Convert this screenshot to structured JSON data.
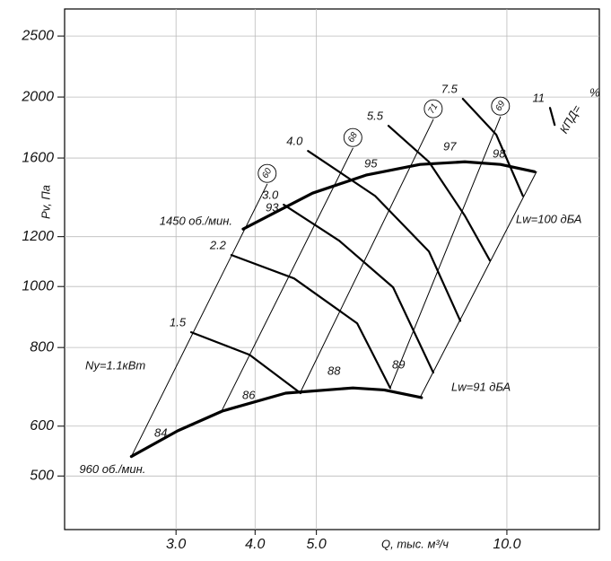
{
  "chart_data": {
    "type": "fan-performance",
    "y_label": "Pv, Па",
    "x_label": "Q, тыс. м³/ч",
    "log_x": true,
    "log_y": true,
    "grid": true,
    "color": "#000000",
    "xlim": [
      2,
      14
    ],
    "ylim": [
      411,
      2760
    ],
    "xticks": [
      {
        "value": 3,
        "label": "3.0"
      },
      {
        "value": 4,
        "label": "4.0"
      },
      {
        "value": 5,
        "label": "5.0"
      },
      {
        "value": 10,
        "label": "10.0"
      }
    ],
    "yticks": [
      500,
      600,
      800,
      1000,
      1200,
      1600,
      2000,
      2500
    ],
    "speed_curves": [
      {
        "name": "1450 об./мин.",
        "x": [
          3.83,
          4.93,
          5.99,
          7.29,
          8.58,
          9.77,
          11.06
        ],
        "y": [
          1234,
          1407,
          1503,
          1563,
          1578,
          1563,
          1522
        ]
      },
      {
        "name": "960 об./мин.",
        "x": [
          2.55,
          3.02,
          3.55,
          4.47,
          5.71,
          6.4,
          7.33
        ],
        "y": [
          537,
          590,
          634,
          677,
          690,
          685,
          666
        ]
      }
    ],
    "power_curves": [
      {
        "name": "1.5",
        "x": [
          3.17,
          3.92,
          4.72
        ],
        "y": [
          846,
          779,
          677
        ]
      },
      {
        "name": "2.2",
        "x": [
          3.67,
          4.61,
          5.8,
          6.54
        ],
        "y": [
          1122,
          1030,
          874,
          690
        ]
      },
      {
        "name": "3.0",
        "x": [
          4.44,
          5.43,
          6.61,
          7.65
        ],
        "y": [
          1349,
          1183,
          997,
          730
        ]
      },
      {
        "name": "4.0",
        "x": [
          4.85,
          6.19,
          7.53,
          8.44
        ],
        "y": [
          1642,
          1393,
          1137,
          882
        ]
      },
      {
        "name": "5.5",
        "x": [
          6.5,
          7.53,
          8.58,
          9.4
        ],
        "y": [
          1800,
          1578,
          1296,
          1100
        ]
      },
      {
        "name": "7.5",
        "x": [
          8.52,
          9.62,
          10.6
        ],
        "y": [
          1987,
          1743,
          1393
        ]
      },
      {
        "name": "11",
        "x": [
          11.7,
          11.9
        ],
        "y": [
          1922,
          1806
        ]
      }
    ],
    "efficiency_lines": [
      {
        "name": "60",
        "x": [
          2.55,
          4.18
        ],
        "y": [
          537,
          1454
        ]
      },
      {
        "name": "68",
        "x": [
          3.53,
          5.71
        ],
        "y": [
          630,
          1658
        ]
      },
      {
        "name": "71",
        "x": [
          4.71,
          7.65
        ],
        "y": [
          677,
          1842
        ]
      },
      {
        "name": "69",
        "x": [
          6.54,
          9.77
        ],
        "y": [
          690,
          1860
        ]
      },
      {
        "x": [
          7.29,
          11.14
        ],
        "y": [
          666,
          1522
        ]
      }
    ],
    "annotations": [
      "84",
      "86",
      "88",
      "89",
      "93",
      "95",
      "97",
      "98",
      "Lw=100 дБА",
      "Lw=91 дБА",
      "Ny=1.1кВт",
      "КПД=",
      "%"
    ]
  }
}
